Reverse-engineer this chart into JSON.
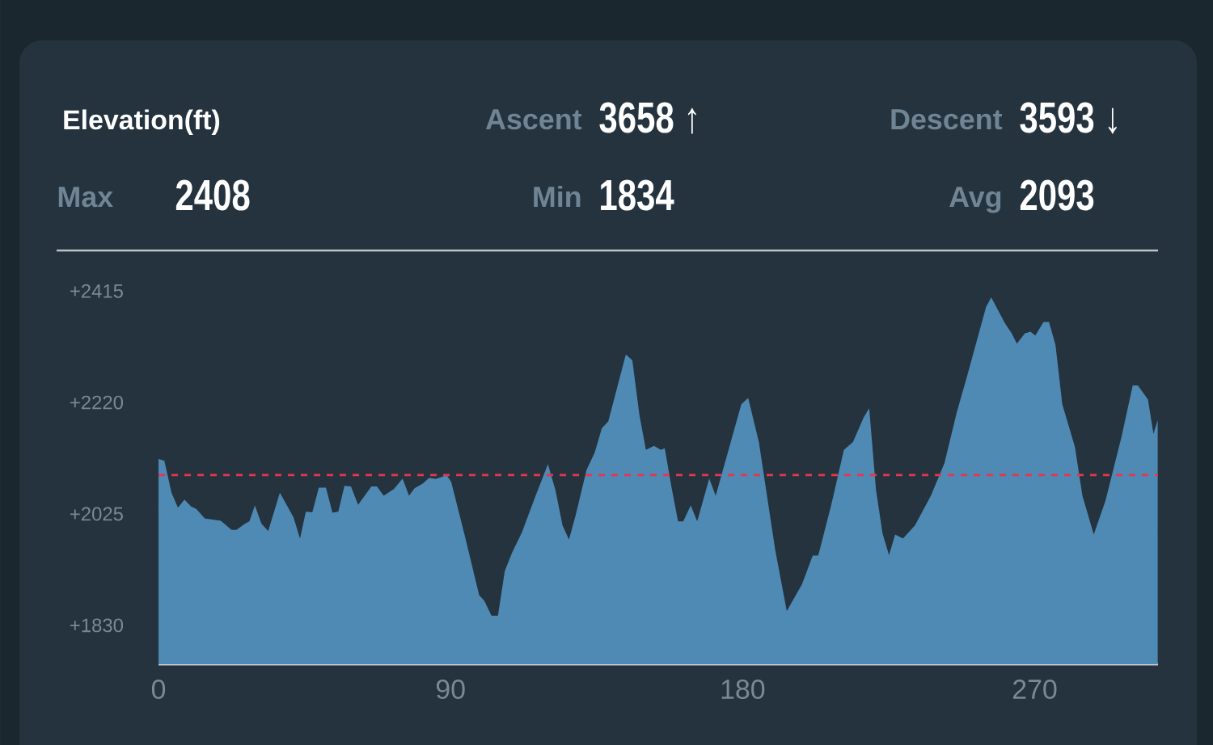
{
  "chart_data": {
    "type": "area",
    "title": "Elevation(ft)",
    "annotations": [
      "Ascent",
      "3658 ↑",
      "Descent",
      "3593 ↓",
      "Max",
      "2408",
      "Min",
      "1834",
      "Avg",
      "2093"
    ],
    "x": [
      0,
      1.8,
      4,
      6,
      8,
      10,
      11.6,
      14.3,
      19.2,
      22.5,
      24,
      26.7,
      28,
      29.7,
      31.7,
      33.8,
      37.4,
      41.6,
      43.6,
      45.4,
      47.4,
      49.4,
      51.6,
      53.6,
      55.4,
      57.3,
      59.3,
      61.5,
      65.6,
      67.3,
      69.4,
      72.6,
      75.2,
      77.2,
      78.9,
      81.4,
      83.4,
      85.5,
      88.8,
      90.2,
      94.6,
      98.8,
      100.4,
      102.6,
      104.6,
      106.7,
      109,
      112,
      116.2,
      120,
      122.3,
      124.5,
      126.5,
      128.6,
      131.9,
      134.4,
      136.6,
      138.6,
      144,
      146,
      148.2,
      150.2,
      152.7,
      154.8,
      156,
      158.1,
      160.1,
      161.7,
      164,
      166,
      169.7,
      171.7,
      175.9,
      179.6,
      181.7,
      185,
      190,
      193.6,
      198.3,
      201.6,
      203.3,
      207.4,
      211.2,
      214,
      217.3,
      219,
      221.1,
      223.1,
      225.1,
      227,
      229.4,
      233.1,
      238,
      242.2,
      246,
      249.3,
      255,
      256.6,
      260.9,
      262.9,
      264.5,
      267,
      268.7,
      270.2,
      272.7,
      274.4,
      276.4,
      278.5,
      282.4,
      284.7,
      288.2,
      291.8,
      296.8,
      300.2,
      301.8,
      304.9,
      306.6,
      307.9
    ],
    "series": [
      {
        "color": "#4f8ab5",
        "values": [
          2121,
          2118,
          2062,
          2036,
          2050,
          2038,
          2034,
          2017,
          2013,
          1997,
          1997,
          2008,
          2012,
          2040,
          2008,
          1995,
          2062,
          2019,
          1982,
          2029,
          2028,
          2071,
          2071,
          2027,
          2029,
          2074,
          2073,
          2041,
          2073,
          2073,
          2057,
          2069,
          2087,
          2057,
          2070,
          2078,
          2088,
          2086,
          2093,
          2081,
          1982,
          1883,
          1873,
          1847,
          1847,
          1925,
          1958,
          1993,
          2057,
          2112,
          2067,
          2005,
          1980,
          2024,
          2102,
          2132,
          2175,
          2187,
          2304,
          2294,
          2198,
          2137,
          2144,
          2137,
          2140,
          2071,
          2012,
          2012,
          2040,
          2012,
          2087,
          2057,
          2142,
          2217,
          2228,
          2151,
          1963,
          1855,
          1902,
          1952,
          1952,
          2043,
          2137,
          2151,
          2194,
          2210,
          2067,
          1991,
          1953,
          1989,
          1982,
          2005,
          2057,
          2114,
          2203,
          2269,
          2387,
          2404,
          2358,
          2341,
          2323,
          2341,
          2344,
          2337,
          2361,
          2361,
          2321,
          2217,
          2142,
          2057,
          1989,
          2048,
          2161,
          2250,
          2250,
          2225,
          2165,
          2189
        ]
      }
    ],
    "ref_lines": [
      {
        "axis": "y",
        "value": 2093,
        "color": "#e8344e",
        "line_style": "dashed"
      }
    ],
    "xlim": [
      0,
      308
    ],
    "ylim": [
      1762,
      2486
    ],
    "xticks": [
      0,
      90,
      180,
      270
    ],
    "yticks": [
      {
        "value": 1830,
        "label": "+1830"
      },
      {
        "value": 2025,
        "label": "+2025"
      },
      {
        "value": 2220,
        "label": "+2220"
      },
      {
        "value": 2415,
        "label": "+2415"
      }
    ]
  }
}
